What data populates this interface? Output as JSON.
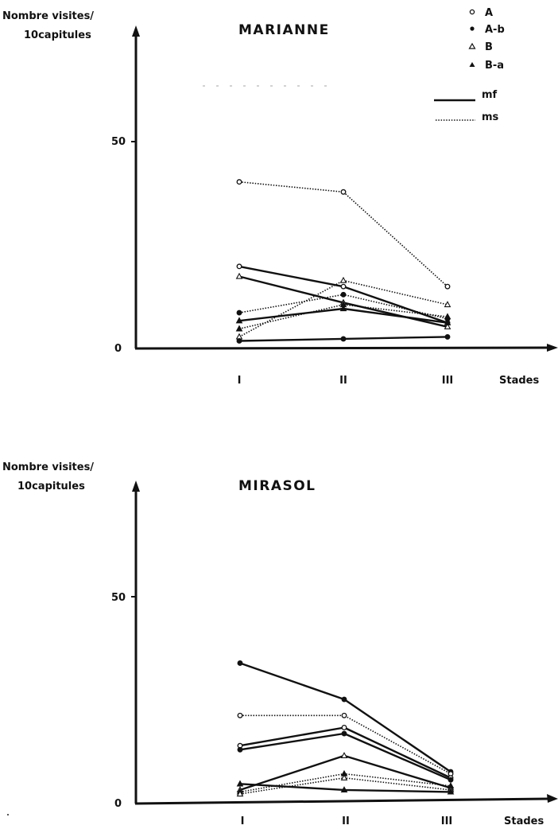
{
  "chart_data": [
    {
      "type": "line",
      "title": "MARIANNE",
      "ylabel_line1": "Nombre visites/",
      "ylabel_line2": "10capitules",
      "xlabel": "Stades",
      "categories": [
        "I",
        "II",
        "III"
      ],
      "y_ticks": [
        "0",
        "50"
      ],
      "ylim": [
        0,
        75
      ],
      "series": [
        {
          "name": "A",
          "line": "ms",
          "values": [
            40,
            37.5,
            14
          ]
        },
        {
          "name": "A",
          "line": "mf",
          "values": [
            19,
            14,
            5
          ]
        },
        {
          "name": "B",
          "line": "mf",
          "values": [
            16.5,
            10,
            4
          ]
        },
        {
          "name": "A-b",
          "line": "ms",
          "values": [
            7.5,
            12,
            6
          ]
        },
        {
          "name": "B",
          "line": "ms",
          "values": [
            1.5,
            15.5,
            9.5
          ]
        },
        {
          "name": "B-a",
          "line": "mf",
          "values": [
            5.5,
            8.5,
            5
          ]
        },
        {
          "name": "B-a",
          "line": "ms",
          "values": [
            3.5,
            9.5,
            6.5
          ]
        },
        {
          "name": "A-b",
          "line": "mf",
          "values": [
            0.5,
            1,
            1.5
          ]
        }
      ]
    },
    {
      "type": "line",
      "title": "MIRASOL",
      "ylabel_line1": "Nombre visites/",
      "ylabel_line2": "10capitules",
      "xlabel": "Stades",
      "categories": [
        "I",
        "II",
        "III"
      ],
      "y_ticks": [
        "0",
        "50"
      ],
      "ylim": [
        0,
        75
      ],
      "series": [
        {
          "name": "A-b",
          "line": "mf",
          "values": [
            33.5,
            24.5,
            6.5
          ]
        },
        {
          "name": "A",
          "line": "ms",
          "values": [
            20.5,
            20.5,
            6
          ]
        },
        {
          "name": "A",
          "line": "mf",
          "values": [
            13,
            17.5,
            5
          ]
        },
        {
          "name": "A-b",
          "line": "mf",
          "values": [
            12,
            16,
            4.5
          ]
        },
        {
          "name": "B",
          "line": "mf",
          "values": [
            2,
            10.5,
            2.5
          ]
        },
        {
          "name": "B-a",
          "line": "ms",
          "values": [
            1.5,
            6,
            3
          ]
        },
        {
          "name": "B",
          "line": "ms",
          "values": [
            1,
            5,
            2
          ]
        },
        {
          "name": "B-a",
          "line": "mf",
          "values": [
            3.5,
            2,
            1.5
          ]
        }
      ]
    }
  ],
  "legend": [
    {
      "symbol": "open-circle",
      "label": "A"
    },
    {
      "symbol": "filled-circle",
      "label": "A-b"
    },
    {
      "symbol": "open-triangle",
      "label": "B"
    },
    {
      "symbol": "filled-triangle",
      "label": "B-a"
    },
    {
      "symbol": "solid-line",
      "label": "mf"
    },
    {
      "symbol": "dotted-line",
      "label": "ms"
    }
  ]
}
